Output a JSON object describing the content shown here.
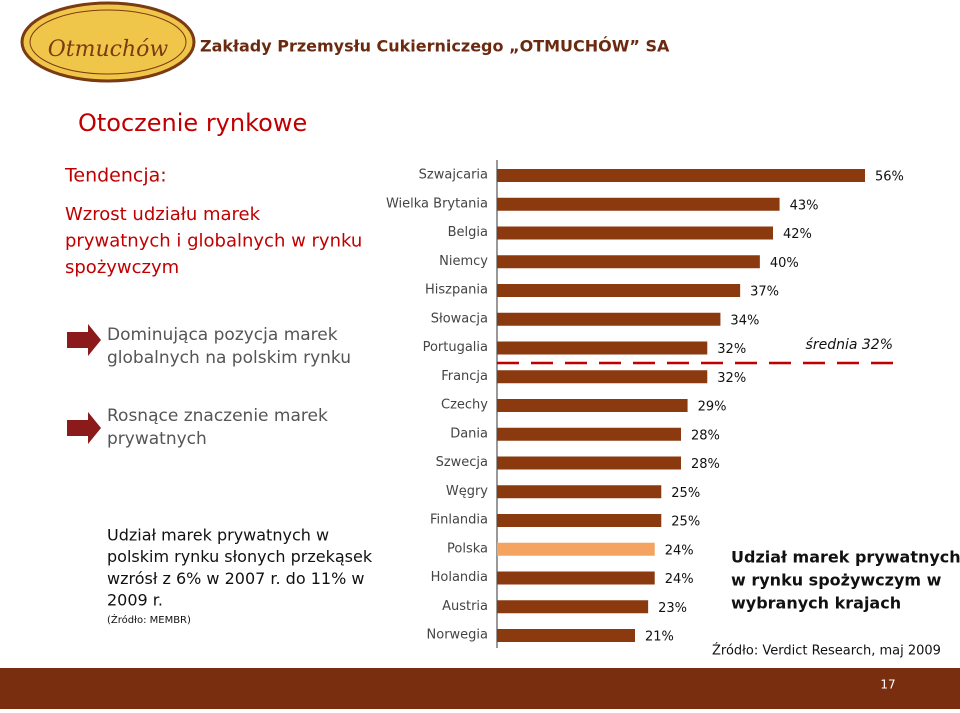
{
  "header": {
    "logo": "Otmuchów",
    "company": "Zakłady Przemysłu Cukierniczego „OTMUCHÓW” SA"
  },
  "slide_title": "Otoczenie rynkowe",
  "trend_label": "Tendencja:",
  "trend_text": [
    "Wzrost udziału marek",
    "prywatnych i globalnych w rynku",
    "spożywczym"
  ],
  "points": [
    [
      "Dominująca pozycja marek",
      "globalnych na polskim rynku"
    ],
    [
      "Rosnące znaczenie marek",
      "prywatnych"
    ]
  ],
  "note": [
    "Udział marek prywatnych w",
    "polskim rynku słonych przekąsek",
    "wzrósł z 6% w 2007 r. do 11% w",
    "2009 r."
  ],
  "note_source": "(Źródło: MEMBR)",
  "page_number": "17",
  "chart_data": {
    "type": "bar",
    "orientation": "horizontal",
    "title": [
      "Udział marek prywatnych",
      "w rynku spożywczym w",
      "wybranych krajach"
    ],
    "source": "Źródło: Verdict Research, maj 2009",
    "categories": [
      "Szwajcaria",
      "Wielka Brytania",
      "Belgia",
      "Niemcy",
      "Hiszpania",
      "Słowacja",
      "Portugalia",
      "Francja",
      "Czechy",
      "Dania",
      "Szwecja",
      "Węgry",
      "Finlandia",
      "Polska",
      "Holandia",
      "Austria",
      "Norwegia"
    ],
    "values": [
      56,
      43,
      42,
      40,
      37,
      34,
      32,
      32,
      29,
      28,
      28,
      25,
      25,
      24,
      24,
      23,
      21
    ],
    "value_labels": [
      "56%",
      "43%",
      "42%",
      "40%",
      "37%",
      "34%",
      "32%",
      "32%",
      "29%",
      "28%",
      "28%",
      "25%",
      "25%",
      "24%",
      "24%",
      "23%",
      "21%"
    ],
    "color": "#8b3a10",
    "highlight": {
      "category": "Polska",
      "color": "#f4a460"
    },
    "average_label": "średnia 32%"
  }
}
